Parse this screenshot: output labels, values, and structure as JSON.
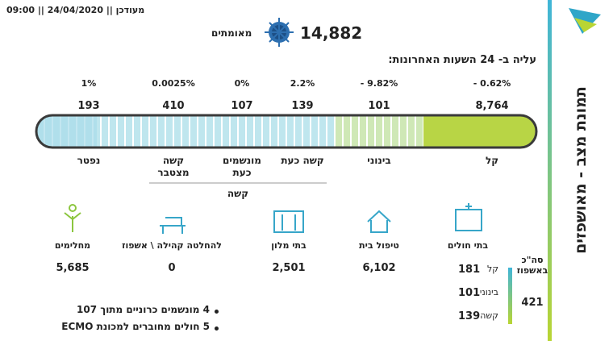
{
  "header": {
    "updated": "מעודכן || 24/04/2020 || 09:00",
    "confirmed_count": "14,882",
    "confirmed_label": "מאומתים"
  },
  "side_title": "תמונת מצב - מאושפזים",
  "change_title": "עליה ב- 24 השעות האחרונות:",
  "severity": [
    {
      "label": "קל",
      "count": "8,764",
      "change": "- 0.62%"
    },
    {
      "label": "בינוני",
      "count": "101",
      "change": "- 9.82%"
    },
    {
      "label": "קשה כעת",
      "count": "139",
      "change": "2.2%"
    },
    {
      "label": "מונשמים כעת",
      "count": "107",
      "change": "0%"
    },
    {
      "label": "קשה מצטבר",
      "count": "410",
      "change": "0.0025%"
    },
    {
      "label": "נפטר",
      "count": "193",
      "change": "1%"
    }
  ],
  "severe_group_label": "קשה",
  "locations": [
    {
      "label": "בתי חולים"
    },
    {
      "label": "טיפול בית",
      "count": "6,102"
    },
    {
      "label": "בתי מלון",
      "count": "2,501"
    },
    {
      "label": "להחלטה קהילה \\ אשפוז",
      "count": "0"
    },
    {
      "label": "מחלימים",
      "count": "5,685"
    }
  ],
  "hospital": {
    "total_label": "סה\"כ באשפוז",
    "total": "421",
    "breakdown": [
      {
        "label": "קל",
        "count": "181"
      },
      {
        "label": "בינוני",
        "count": "101"
      },
      {
        "label": "קשה",
        "count": "139"
      }
    ]
  },
  "notes": [
    "4 מונשמים כרוניים מתוך 107",
    "5 חולים מחוברים למכונת ECMO"
  ]
}
